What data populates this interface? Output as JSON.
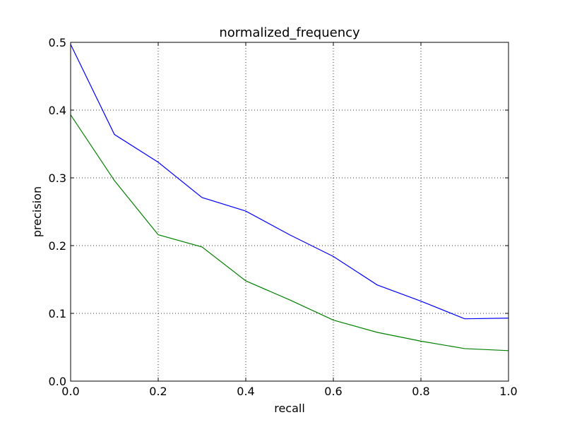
{
  "chart_data": {
    "type": "line",
    "title": "normalized_frequency",
    "xlabel": "recall",
    "ylabel": "precision",
    "xlim": [
      0.0,
      1.0
    ],
    "ylim": [
      0.0,
      0.5
    ],
    "grid": true,
    "x_ticks": [
      "0.0",
      "0.2",
      "0.4",
      "0.6",
      "0.8",
      "1.0"
    ],
    "y_ticks": [
      "0.0",
      "0.1",
      "0.2",
      "0.3",
      "0.4",
      "0.5"
    ],
    "x": [
      0.0,
      0.1,
      0.2,
      0.3,
      0.4,
      0.5,
      0.6,
      0.7,
      0.8,
      0.9,
      1.0
    ],
    "series": [
      {
        "color": "#0000ff",
        "values": [
          0.497,
          0.364,
          0.323,
          0.271,
          0.251,
          0.216,
          0.184,
          0.142,
          0.118,
          0.092,
          0.093
        ]
      },
      {
        "color": "#008000",
        "values": [
          0.393,
          0.296,
          0.216,
          0.198,
          0.148,
          0.12,
          0.09,
          0.072,
          0.059,
          0.048,
          0.045
        ]
      }
    ]
  }
}
